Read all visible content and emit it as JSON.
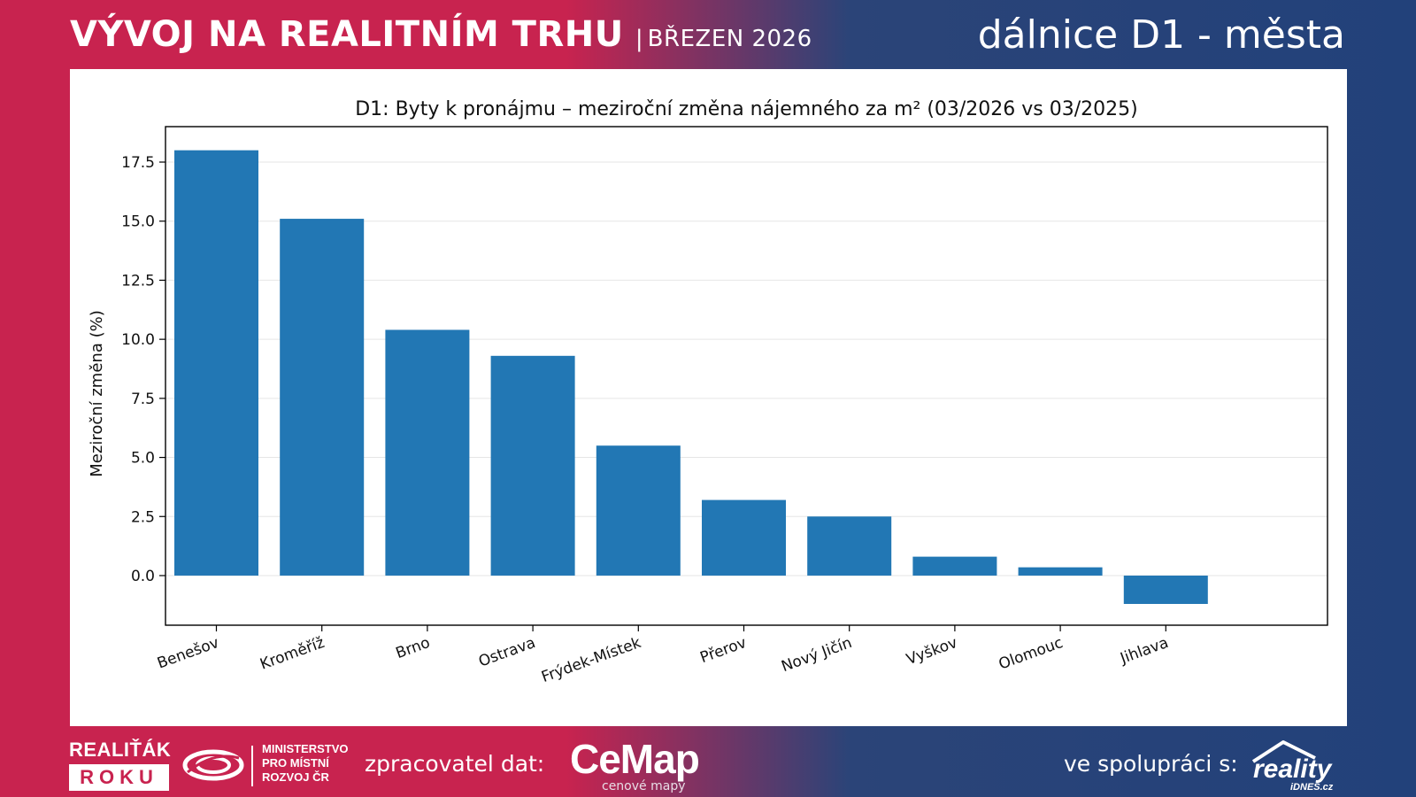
{
  "header": {
    "title": "VÝVOJ NA REALITNÍM TRHU",
    "separator": "|",
    "date": "BŘEZEN 2026",
    "right_title": "dálnice D1 - města"
  },
  "chart_data": {
    "type": "bar",
    "title": "D1: Byty k pronájmu – meziroční změna nájemného za m² (03/2026 vs 03/2025)",
    "xlabel": "",
    "ylabel": "Meziroční změna (%)",
    "categories": [
      "Benešov",
      "Kroměříž",
      "Brno",
      "Ostrava",
      "Frýdek-Místek",
      "Přerov",
      "Nový Jičín",
      "Vyškov",
      "Olomouc",
      "Jihlava"
    ],
    "values": [
      18.0,
      15.1,
      10.4,
      9.3,
      5.5,
      3.2,
      2.5,
      0.8,
      0.35,
      -1.2
    ],
    "ylim": [
      -2.1,
      19.0
    ],
    "yticks": [
      0.0,
      2.5,
      5.0,
      7.5,
      10.0,
      12.5,
      15.0,
      17.5
    ],
    "ytick_labels": [
      "0.0",
      "2.5",
      "5.0",
      "7.5",
      "10.0",
      "12.5",
      "15.0",
      "17.5"
    ],
    "grid": "horizontal",
    "bar_color": "#2277b4"
  },
  "footer": {
    "realitak_top": "REALIŤÁK",
    "realitak_bottom": "ROKU",
    "ministry_lines": [
      "MINISTERSTVO",
      "PRO MÍSTNÍ",
      "ROZVOJ ČR"
    ],
    "data_processor_label": "zpracovatel dat:",
    "cemap_word": "CeMap",
    "cemap_sub": "cenové mapy",
    "cooperation_label": "ve spolupráci s:",
    "reality_logo_text": "reality",
    "reality_logo_sub": "iDNES.cz"
  },
  "colors": {
    "brand_red": "#c8234f",
    "brand_blue": "#22417a"
  }
}
